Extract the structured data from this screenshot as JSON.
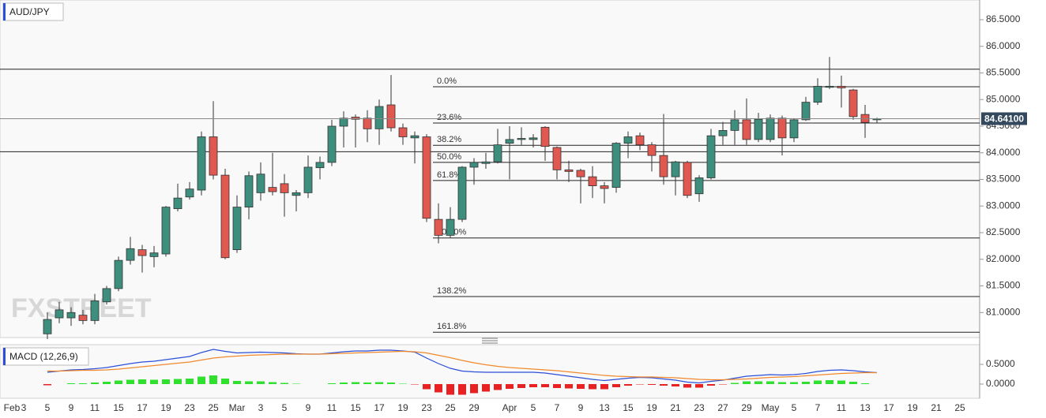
{
  "chart_data": [
    {
      "type": "candlestick",
      "title": "AUD/JPY",
      "watermark": "FXSTREET",
      "categories": [
        "Feb",
        "3",
        null,
        "5",
        null,
        "9",
        null,
        "11",
        null,
        "15",
        null,
        "17",
        null,
        "19",
        null,
        "23",
        null,
        "25",
        null,
        "Mar",
        null,
        "3",
        null,
        "5",
        null,
        "9",
        null,
        "11",
        null,
        "15",
        null,
        "17",
        null,
        "19",
        null,
        "23",
        null,
        "25",
        null,
        "29",
        null,
        null,
        "Apr",
        null,
        "5",
        null,
        "7",
        null,
        "9",
        null,
        "13",
        null,
        "15",
        null,
        "19",
        null,
        "21",
        null,
        "23",
        null,
        "27",
        null,
        "29",
        null,
        "May",
        null,
        "5",
        null,
        "7",
        null,
        "11",
        null,
        "13",
        null,
        "17",
        null,
        "19",
        null,
        "21",
        null,
        "25"
      ],
      "open": [
        null,
        null,
        null,
        80.6,
        80.9,
        80.9,
        80.95,
        80.85,
        81.2,
        81.45,
        81.98,
        82.18,
        82.05,
        82.1,
        82.95,
        83.17,
        83.3,
        84.3,
        83.58,
        82.18,
        82.98,
        83.25,
        83.35,
        83.42,
        83.2,
        83.25,
        83.72,
        83.82,
        84.5,
        84.67,
        84.65,
        84.45,
        84.9,
        84.47,
        84.28,
        84.3,
        82.75,
        82.45,
        82.75,
        83.73,
        83.8,
        83.83,
        84.18,
        84.25,
        84.25,
        84.48,
        84.1,
        83.68,
        83.67,
        83.55,
        83.38,
        83.35,
        84.18,
        84.32,
        84.15,
        83.95,
        83.55,
        83.82,
        83.23,
        83.53,
        84.32,
        84.42,
        84.62,
        84.25,
        84.25,
        84.65,
        84.28,
        84.62,
        84.95,
        85.23,
        85.25,
        85.18,
        84.72,
        84.62,
        null,
        null,
        null,
        null,
        null,
        null,
        null
      ],
      "high": [
        null,
        null,
        null,
        81.0,
        81.2,
        81.1,
        81.05,
        81.35,
        81.5,
        82.05,
        82.42,
        82.27,
        82.25,
        83.0,
        83.42,
        83.45,
        84.4,
        84.97,
        83.7,
        83.2,
        83.65,
        83.82,
        84.0,
        83.6,
        83.3,
        83.95,
        83.93,
        84.62,
        84.78,
        84.72,
        84.8,
        85.0,
        85.46,
        84.55,
        84.4,
        84.35,
        83.05,
        82.98,
        83.75,
        83.9,
        84.0,
        84.45,
        84.5,
        84.48,
        84.35,
        84.5,
        84.12,
        83.85,
        83.7,
        83.75,
        83.45,
        84.2,
        84.4,
        84.38,
        84.2,
        84.73,
        83.85,
        83.85,
        83.58,
        84.45,
        84.58,
        84.8,
        85.02,
        84.75,
        84.72,
        84.7,
        84.65,
        85.05,
        85.4,
        85.8,
        85.45,
        85.2,
        84.9,
        84.66,
        null,
        null,
        null,
        null,
        null,
        null,
        null
      ],
      "low": [
        null,
        null,
        null,
        80.5,
        80.8,
        80.75,
        80.78,
        80.78,
        81.15,
        81.4,
        81.9,
        81.75,
        81.85,
        82.05,
        82.9,
        83.12,
        83.2,
        83.5,
        82.0,
        82.12,
        82.75,
        83.1,
        83.2,
        82.8,
        82.9,
        83.15,
        83.5,
        83.75,
        84.1,
        84.1,
        84.2,
        84.15,
        84.4,
        84.15,
        83.8,
        82.7,
        82.3,
        82.4,
        82.7,
        83.4,
        83.7,
        83.8,
        83.5,
        84.15,
        84.1,
        83.85,
        83.5,
        83.45,
        83.05,
        83.15,
        83.05,
        83.25,
        83.9,
        84.05,
        83.65,
        83.4,
        83.2,
        83.15,
        83.08,
        83.5,
        84.15,
        84.15,
        84.15,
        84.2,
        84.2,
        83.95,
        84.2,
        84.6,
        84.9,
        85.2,
        84.85,
        84.62,
        84.28,
        84.56,
        null,
        null,
        null,
        null,
        null,
        null,
        null
      ],
      "close": [
        null,
        null,
        null,
        80.87,
        81.05,
        81.0,
        80.85,
        81.22,
        81.45,
        81.98,
        82.2,
        82.07,
        82.12,
        82.98,
        83.15,
        83.32,
        84.3,
        83.58,
        82.03,
        82.98,
        83.57,
        83.6,
        83.27,
        83.25,
        83.25,
        83.73,
        83.82,
        84.5,
        84.65,
        84.63,
        84.45,
        84.87,
        84.47,
        84.3,
        84.32,
        82.77,
        82.45,
        82.75,
        83.73,
        83.82,
        83.83,
        84.15,
        84.25,
        84.27,
        84.28,
        84.12,
        83.68,
        83.65,
        83.55,
        83.38,
        83.33,
        84.18,
        84.3,
        84.15,
        83.95,
        83.55,
        83.83,
        83.2,
        83.53,
        84.32,
        84.42,
        84.62,
        84.25,
        84.63,
        84.65,
        84.28,
        84.62,
        84.95,
        85.25,
        85.25,
        85.22,
        84.68,
        84.57,
        84.641,
        null,
        null,
        null,
        null,
        null,
        null,
        null
      ],
      "up_color": "#3e8e7e",
      "down_color": "#e0584f",
      "ylim": [
        80.53,
        86.87
      ],
      "yticks": [
        {
          "value": 81.0,
          "label": "81.0000"
        },
        {
          "value": 81.5,
          "label": "81.5000"
        },
        {
          "value": 82.0,
          "label": "82.0000"
        },
        {
          "value": 82.5,
          "label": "82.5000"
        },
        {
          "value": 83.0,
          "label": "83.0000"
        },
        {
          "value": 83.5,
          "label": "83.5000"
        },
        {
          "value": 84.0,
          "label": "84.0000"
        },
        {
          "value": 84.5,
          "label": "84.5000"
        },
        {
          "value": 85.0,
          "label": "85.0000"
        },
        {
          "value": 85.5,
          "label": "85.5000"
        },
        {
          "value": 86.0,
          "label": "86.0000"
        },
        {
          "value": 86.5,
          "label": "86.5000"
        }
      ],
      "price_label": {
        "value": 84.641,
        "label": "84.64100"
      },
      "fib_levels": [
        {
          "value": 85.24,
          "label": "0.0%"
        },
        {
          "value": 84.56,
          "label": "23.6%"
        },
        {
          "value": 84.14,
          "label": "38.2%"
        },
        {
          "value": 83.82,
          "label": "50.0%"
        },
        {
          "value": 83.48,
          "label": "61.8%"
        },
        {
          "value": 82.4,
          "label": "100.0%"
        },
        {
          "value": 81.3,
          "label": "138.2%"
        },
        {
          "value": 80.63,
          "label": "161.8%"
        }
      ],
      "hlines": [
        85.57,
        84.02
      ]
    },
    {
      "type": "macd",
      "title": "MACD (12,26,9)",
      "series": [
        {
          "color": "#2b4fd8",
          "values": [
            null,
            null,
            null,
            0.3,
            0.33,
            0.36,
            0.37,
            0.39,
            0.42,
            0.47,
            0.52,
            0.56,
            0.58,
            0.62,
            0.66,
            0.7,
            0.8,
            0.88,
            0.83,
            0.79,
            0.8,
            0.81,
            0.8,
            0.79,
            0.77,
            0.76,
            0.76,
            0.79,
            0.82,
            0.84,
            0.84,
            0.86,
            0.86,
            0.84,
            0.81,
            0.66,
            0.52,
            0.4,
            0.33,
            0.31,
            0.3,
            0.3,
            0.3,
            0.3,
            0.3,
            0.28,
            0.24,
            0.2,
            0.16,
            0.12,
            0.09,
            0.12,
            0.15,
            0.17,
            0.16,
            0.13,
            0.1,
            0.05,
            0.03,
            0.07,
            0.1,
            0.15,
            0.2,
            0.22,
            0.24,
            0.23,
            0.24,
            0.27,
            0.32,
            0.35,
            0.36,
            0.34,
            0.31,
            0.29,
            null,
            null,
            null,
            null,
            null,
            null,
            null
          ]
        },
        {
          "color": "#f0892c",
          "values": [
            null,
            null,
            null,
            0.33,
            0.33,
            0.34,
            0.35,
            0.35,
            0.36,
            0.38,
            0.41,
            0.44,
            0.47,
            0.5,
            0.53,
            0.56,
            0.61,
            0.66,
            0.69,
            0.71,
            0.73,
            0.74,
            0.75,
            0.76,
            0.76,
            0.76,
            0.76,
            0.77,
            0.78,
            0.79,
            0.8,
            0.81,
            0.82,
            0.83,
            0.82,
            0.79,
            0.73,
            0.67,
            0.6,
            0.54,
            0.49,
            0.45,
            0.42,
            0.4,
            0.38,
            0.36,
            0.34,
            0.31,
            0.28,
            0.25,
            0.22,
            0.2,
            0.19,
            0.18,
            0.18,
            0.17,
            0.16,
            0.14,
            0.12,
            0.11,
            0.11,
            0.12,
            0.13,
            0.15,
            0.17,
            0.18,
            0.19,
            0.21,
            0.23,
            0.25,
            0.27,
            0.28,
            0.29,
            0.29,
            null,
            null,
            null,
            null,
            null,
            null,
            null
          ]
        }
      ],
      "histogram": [
        null,
        null,
        null,
        -0.03,
        0.0,
        0.02,
        0.02,
        0.04,
        0.06,
        0.09,
        0.11,
        0.12,
        0.11,
        0.12,
        0.13,
        0.14,
        0.19,
        0.22,
        0.14,
        0.08,
        0.07,
        0.07,
        0.05,
        0.03,
        0.01,
        0.0,
        0.0,
        0.02,
        0.04,
        0.05,
        0.04,
        0.05,
        0.04,
        0.01,
        -0.01,
        -0.13,
        -0.21,
        -0.27,
        -0.27,
        -0.23,
        -0.19,
        -0.15,
        -0.12,
        -0.1,
        -0.08,
        -0.08,
        -0.1,
        -0.11,
        -0.12,
        -0.13,
        -0.13,
        -0.08,
        -0.04,
        -0.01,
        -0.02,
        -0.04,
        -0.06,
        -0.09,
        -0.09,
        -0.04,
        -0.01,
        0.03,
        0.07,
        0.07,
        0.07,
        0.05,
        0.05,
        0.06,
        0.09,
        0.1,
        0.09,
        0.06,
        0.02,
        0.0,
        null,
        null,
        null,
        null,
        null,
        null,
        null
      ],
      "pos_color": "#2fe02f",
      "neg_color": "#e82222",
      "ylim": [
        -0.3,
        1.0
      ],
      "yticks": [
        {
          "value": 0.0,
          "label": "0.0000"
        },
        {
          "value": 0.5,
          "label": "0.5000"
        }
      ]
    }
  ]
}
